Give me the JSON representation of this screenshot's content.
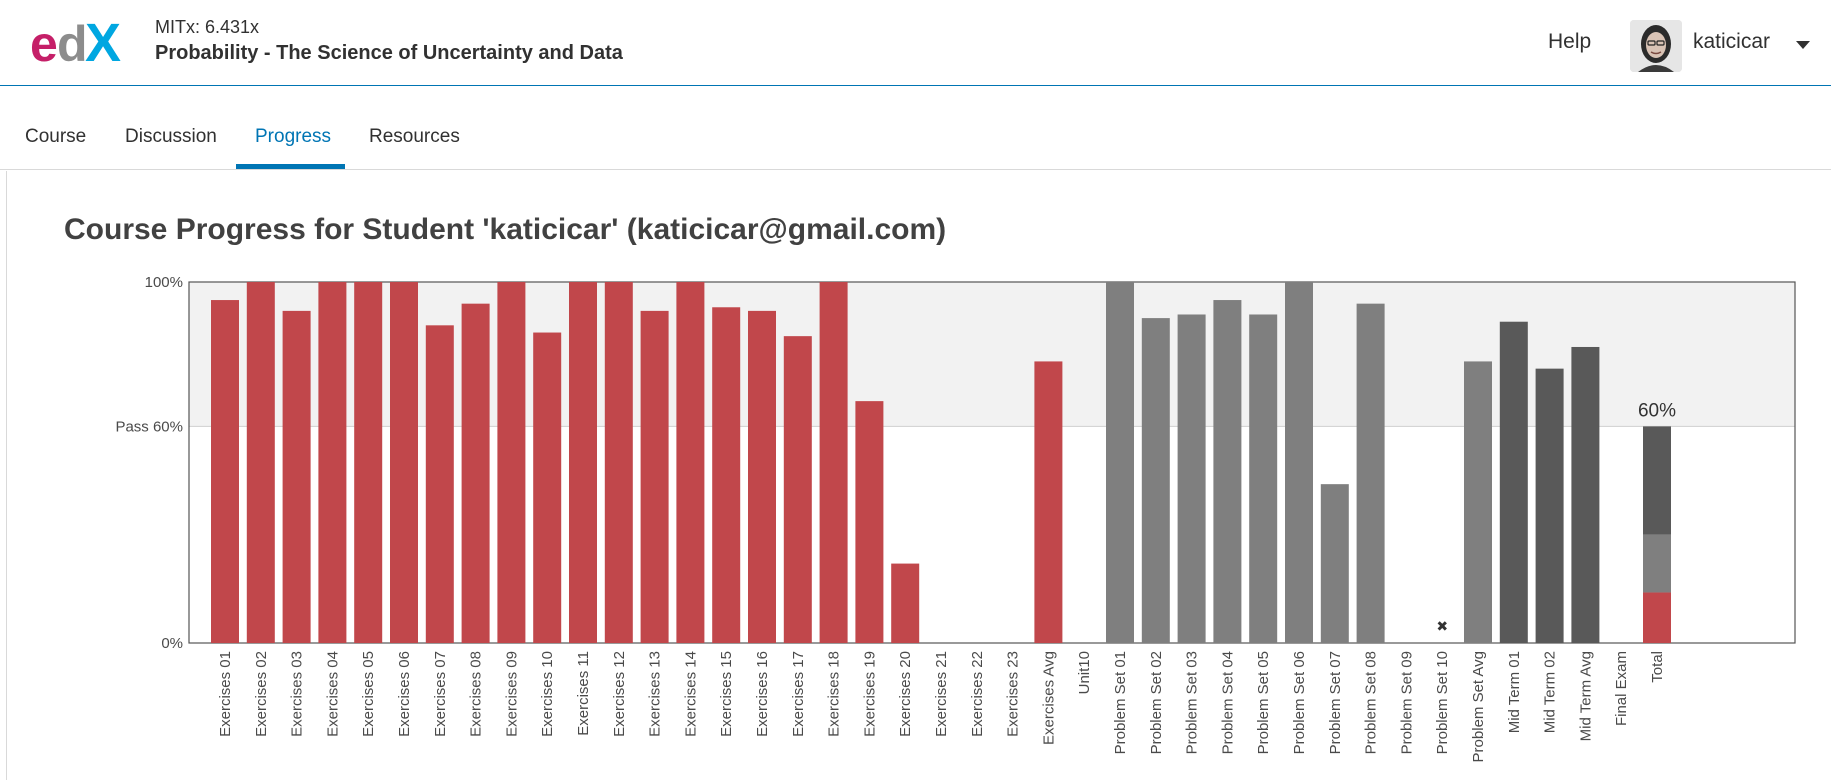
{
  "header": {
    "course_org": "MITx: 6.431x",
    "course_name": "Probability - The Science of Uncertainty and Data",
    "help_label": "Help",
    "username": "katicicar",
    "logo_colors": {
      "e": "#c51f68",
      "d": "#8c8c8c",
      "x": "#00a7e1"
    }
  },
  "tabs": [
    {
      "label": "Course",
      "active": false
    },
    {
      "label": "Discussion",
      "active": false
    },
    {
      "label": "Progress",
      "active": true
    },
    {
      "label": "Resources",
      "active": false
    }
  ],
  "page": {
    "title": "Course Progress for Student 'katicicar' (katicicar@gmail.com)"
  },
  "colors": {
    "exercises": "#c1474b",
    "problem_sets": "#7f7f7f",
    "mid_terms": "#595959",
    "pass_band": "#f2f2f2",
    "accent": "#0075b4"
  },
  "chart_data": {
    "type": "bar",
    "title": "",
    "xlabel": "",
    "ylabel": "",
    "ylim": [
      0,
      100
    ],
    "y_ticks": [
      {
        "value": 100,
        "label": "100%"
      },
      {
        "value": 60,
        "label": "Pass 60%"
      },
      {
        "value": 0,
        "label": "0%"
      }
    ],
    "pass_cutoff": 60,
    "total_label": "60%",
    "categories": [
      "Exercises 01",
      "Exercises 02",
      "Exercises 03",
      "Exercises 04",
      "Exercises 05",
      "Exercises 06",
      "Exercises 07",
      "Exercises 08",
      "Exercises 09",
      "Exercises 10",
      "Exercises 11",
      "Exercises 12",
      "Exercises 13",
      "Exercises 14",
      "Exercises 15",
      "Exercises 16",
      "Exercises 17",
      "Exercises 18",
      "Exercises 19",
      "Exercises 20",
      "Exercises 21",
      "Exercises 22",
      "Exercises 23",
      "Exercises Avg",
      "Unit10",
      "Problem Set 01",
      "Problem Set 02",
      "Problem Set 03",
      "Problem Set 04",
      "Problem Set 05",
      "Problem Set 06",
      "Problem Set 07",
      "Problem Set 08",
      "Problem Set 09",
      "Problem Set 10",
      "Problem Set Avg",
      "Mid Term 01",
      "Mid Term 02",
      "Mid Term Avg",
      "Final Exam",
      "Total"
    ],
    "values": [
      95,
      100,
      92,
      100,
      100,
      100,
      88,
      94,
      100,
      86,
      100,
      100,
      92,
      100,
      93,
      92,
      85,
      100,
      67,
      22,
      0,
      0,
      0,
      78,
      0,
      100,
      90,
      91,
      95,
      91,
      100,
      44,
      94,
      0,
      0,
      78,
      89,
      76,
      82,
      0,
      60
    ],
    "groups": [
      "exercises",
      "exercises",
      "exercises",
      "exercises",
      "exercises",
      "exercises",
      "exercises",
      "exercises",
      "exercises",
      "exercises",
      "exercises",
      "exercises",
      "exercises",
      "exercises",
      "exercises",
      "exercises",
      "exercises",
      "exercises",
      "exercises",
      "exercises",
      "exercises",
      "exercises",
      "exercises",
      "exercises",
      "none",
      "problem_sets",
      "problem_sets",
      "problem_sets",
      "problem_sets",
      "problem_sets",
      "problem_sets",
      "problem_sets",
      "problem_sets",
      "problem_sets",
      "problem_sets",
      "problem_sets",
      "mid_terms",
      "mid_terms",
      "mid_terms",
      "none",
      "total"
    ],
    "dropped_marker_index": 34,
    "total_breakdown": [
      {
        "group": "exercises",
        "value": 14
      },
      {
        "group": "problem_sets",
        "value": 16
      },
      {
        "group": "mid_terms",
        "value": 30
      }
    ]
  }
}
